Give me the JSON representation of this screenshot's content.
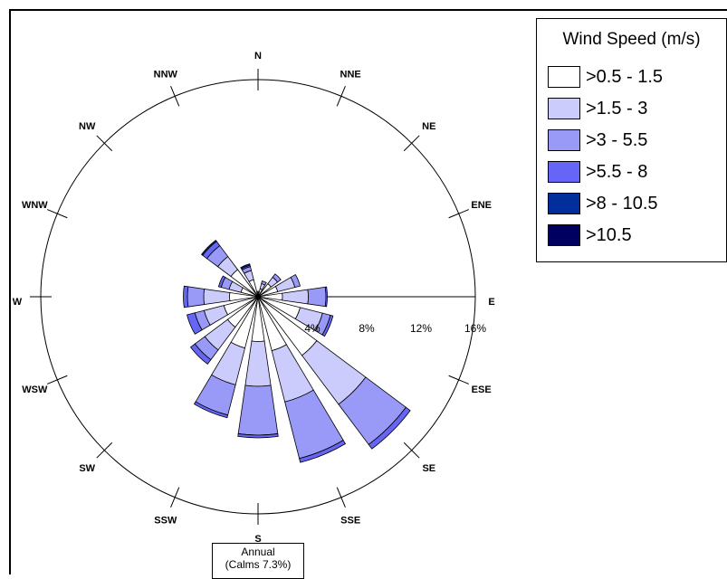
{
  "chart_data": {
    "type": "windrose",
    "directions": [
      "N",
      "NNE",
      "NE",
      "ENE",
      "E",
      "ESE",
      "SE",
      "SSE",
      "S",
      "SSW",
      "SW",
      "WSW",
      "W",
      "WNW",
      "NW",
      "NNW"
    ],
    "radial_ticks": [
      "4%",
      "8%",
      "12%",
      "16%"
    ],
    "radial_max": 16,
    "legend_title": "Wind Speed (m/s)",
    "bins": [
      {
        "label": ">0.5 - 1.5",
        "color": "#ffffff"
      },
      {
        "label": ">1.5 - 3",
        "color": "#ccccfc"
      },
      {
        "label": ">3 - 5.5",
        "color": "#9999f8"
      },
      {
        "label": ">5.5 - 8",
        "color": "#6666f6"
      },
      {
        "label": ">8 - 10.5",
        "color": "#002e9c"
      },
      {
        "label": ">10.5",
        "color": "#000060"
      }
    ],
    "frequencies_percent": [
      [
        0.2,
        0.1,
        0.1,
        0,
        0,
        0
      ],
      [
        0.6,
        0.4,
        0.2,
        0,
        0,
        0
      ],
      [
        1.2,
        0.6,
        0.3,
        0,
        0,
        0
      ],
      [
        1.5,
        1.3,
        0.4,
        0,
        0,
        0
      ],
      [
        1.8,
        1.9,
        1.3,
        0.1,
        0,
        0
      ],
      [
        3.2,
        1.7,
        0.6,
        0.2,
        0,
        0
      ],
      [
        5.4,
        4.5,
        3.7,
        0.4,
        0,
        0
      ],
      [
        4.1,
        3.9,
        4.3,
        0.3,
        0,
        0
      ],
      [
        3.3,
        3.3,
        3.6,
        0.2,
        0,
        0
      ],
      [
        3.9,
        2.8,
        2.3,
        0.2,
        0,
        0
      ],
      [
        2.8,
        2.1,
        0.9,
        0.4,
        0,
        0
      ],
      [
        2.6,
        1.5,
        0.7,
        0.6,
        0,
        0
      ],
      [
        2.1,
        1.9,
        1.2,
        0.3,
        0,
        0
      ],
      [
        1.3,
        0.9,
        0.6,
        0.2,
        0,
        0
      ],
      [
        2.5,
        1.2,
        1.0,
        0.4,
        0.1,
        0
      ],
      [
        1.3,
        0.7,
        0.3,
        0.1,
        0.1,
        0
      ]
    ]
  },
  "annotation": {
    "line1": "Annual",
    "line2": "(Calms 7.3%)"
  }
}
